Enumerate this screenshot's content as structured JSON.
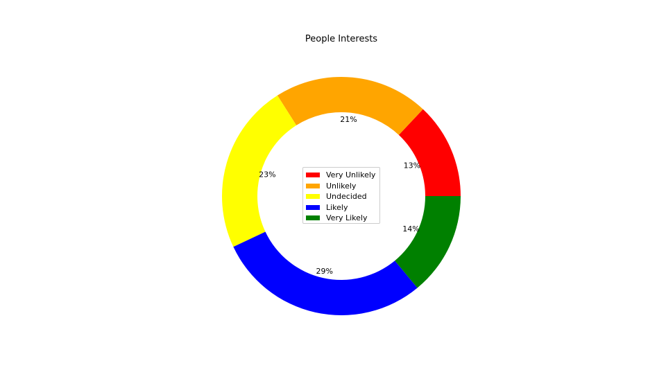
{
  "chart_data": {
    "type": "pie",
    "title": "People Interests",
    "donut": true,
    "start_angle_deg": 0,
    "direction": "counterclockwise",
    "slices": [
      {
        "label": "Very Unlikely",
        "value": 13,
        "pct_label": "13%",
        "color": "#ff0000"
      },
      {
        "label": "Unlikely",
        "value": 21,
        "pct_label": "21%",
        "color": "#ffa500"
      },
      {
        "label": "Undecided",
        "value": 23,
        "pct_label": "23%",
        "color": "#ffff00"
      },
      {
        "label": "Likely",
        "value": 29,
        "pct_label": "29%",
        "color": "#0000ff"
      },
      {
        "label": "Very Likely",
        "value": 14,
        "pct_label": "14%",
        "color": "#008000"
      }
    ],
    "legend_position": "center"
  }
}
